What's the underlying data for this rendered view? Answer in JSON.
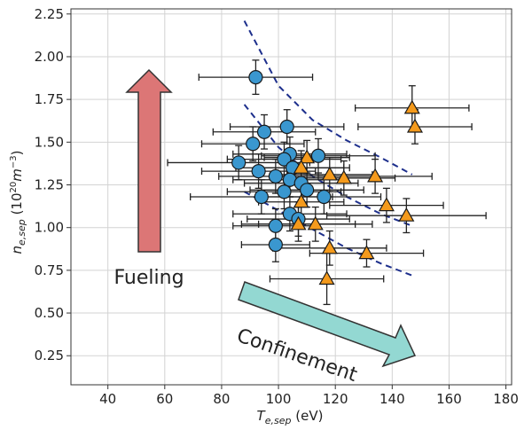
{
  "chart_data": {
    "type": "scatter",
    "title": "",
    "xlabel": "T_e,sep (eV)",
    "ylabel": "n_e,sep (10^20 m^-3)",
    "xlim": [
      27,
      182
    ],
    "ylim": [
      0.08,
      2.28
    ],
    "xticks": [
      "40",
      "60",
      "80",
      "100",
      "120",
      "140",
      "160",
      "180"
    ],
    "yticks": [
      "0.25",
      "0.50",
      "0.75",
      "1.00",
      "1.25",
      "1.50",
      "1.75",
      "2.00",
      "2.25"
    ],
    "grid": true,
    "colors": {
      "circle": "#3a97cf",
      "triangle": "#f49a1c",
      "fit": "#1d2f8c",
      "fueling_arrow": "#dc7676",
      "confinement_arrow": "#93d8d2"
    },
    "series": [
      {
        "marker": "circle",
        "points": [
          {
            "x": 92,
            "y": 1.88,
            "xerr": 20,
            "yerr": 0.1
          },
          {
            "x": 103,
            "y": 1.59,
            "xerr": 20,
            "yerr": 0.1
          },
          {
            "x": 95,
            "y": 1.56,
            "xerr": 18,
            "yerr": 0.1
          },
          {
            "x": 91,
            "y": 1.49,
            "xerr": 18,
            "yerr": 0.1
          },
          {
            "x": 104,
            "y": 1.43,
            "xerr": 20,
            "yerr": 0.1
          },
          {
            "x": 114,
            "y": 1.42,
            "xerr": 20,
            "yerr": 0.1
          },
          {
            "x": 102,
            "y": 1.4,
            "xerr": 20,
            "yerr": 0.1
          },
          {
            "x": 86,
            "y": 1.38,
            "xerr": 25,
            "yerr": 0.1
          },
          {
            "x": 105,
            "y": 1.35,
            "xerr": 20,
            "yerr": 0.1
          },
          {
            "x": 93,
            "y": 1.33,
            "xerr": 20,
            "yerr": 0.1
          },
          {
            "x": 99,
            "y": 1.3,
            "xerr": 20,
            "yerr": 0.1
          },
          {
            "x": 104,
            "y": 1.28,
            "xerr": 20,
            "yerr": 0.1
          },
          {
            "x": 108,
            "y": 1.26,
            "xerr": 20,
            "yerr": 0.1
          },
          {
            "x": 110,
            "y": 1.22,
            "xerr": 20,
            "yerr": 0.1
          },
          {
            "x": 102,
            "y": 1.21,
            "xerr": 20,
            "yerr": 0.1
          },
          {
            "x": 94,
            "y": 1.18,
            "xerr": 25,
            "yerr": 0.1
          },
          {
            "x": 116,
            "y": 1.18,
            "xerr": 20,
            "yerr": 0.1
          },
          {
            "x": 104,
            "y": 1.08,
            "xerr": 20,
            "yerr": 0.1
          },
          {
            "x": 107,
            "y": 1.05,
            "xerr": 18,
            "yerr": 0.1
          },
          {
            "x": 99,
            "y": 1.01,
            "xerr": 15,
            "yerr": 0.1
          },
          {
            "x": 99,
            "y": 0.9,
            "xerr": 12,
            "yerr": 0.1
          }
        ]
      },
      {
        "marker": "triangle",
        "points": [
          {
            "x": 147,
            "y": 1.7,
            "xerr": 20,
            "yerr": 0.13
          },
          {
            "x": 148,
            "y": 1.59,
            "xerr": 20,
            "yerr": 0.1
          },
          {
            "x": 110,
            "y": 1.41,
            "xerr": 15,
            "yerr": 0.1
          },
          {
            "x": 108,
            "y": 1.35,
            "xerr": 15,
            "yerr": 0.1
          },
          {
            "x": 118,
            "y": 1.31,
            "xerr": 15,
            "yerr": 0.1
          },
          {
            "x": 123,
            "y": 1.29,
            "xerr": 18,
            "yerr": 0.1
          },
          {
            "x": 134,
            "y": 1.3,
            "xerr": 20,
            "yerr": 0.1
          },
          {
            "x": 108,
            "y": 1.15,
            "xerr": 15,
            "yerr": 0.1
          },
          {
            "x": 138,
            "y": 1.13,
            "xerr": 20,
            "yerr": 0.1
          },
          {
            "x": 145,
            "y": 1.07,
            "xerr": 28,
            "yerr": 0.1
          },
          {
            "x": 107,
            "y": 1.02,
            "xerr": 20,
            "yerr": 0.1
          },
          {
            "x": 113,
            "y": 1.02,
            "xerr": 20,
            "yerr": 0.1
          },
          {
            "x": 118,
            "y": 0.88,
            "xerr": 20,
            "yerr": 0.1
          },
          {
            "x": 131,
            "y": 0.85,
            "xerr": 20,
            "yerr": 0.08
          },
          {
            "x": 117,
            "y": 0.7,
            "xerr": 20,
            "yerr": 0.15
          }
        ]
      }
    ],
    "fit_curves": [
      {
        "x": [
          88,
          100,
          112,
          124,
          136,
          147
        ],
        "y": [
          2.21,
          1.83,
          1.63,
          1.51,
          1.41,
          1.31
        ]
      },
      {
        "x": [
          88,
          100,
          112,
          124,
          136,
          147
        ],
        "y": [
          1.72,
          1.47,
          1.3,
          1.18,
          1.08,
          1.01
        ]
      },
      {
        "x": [
          88,
          100,
          112,
          124,
          136,
          147
        ],
        "y": [
          1.21,
          1.1,
          0.99,
          0.88,
          0.79,
          0.72
        ]
      }
    ],
    "annotations": {
      "fueling": "Fueling",
      "confinement": "Confinement"
    }
  }
}
